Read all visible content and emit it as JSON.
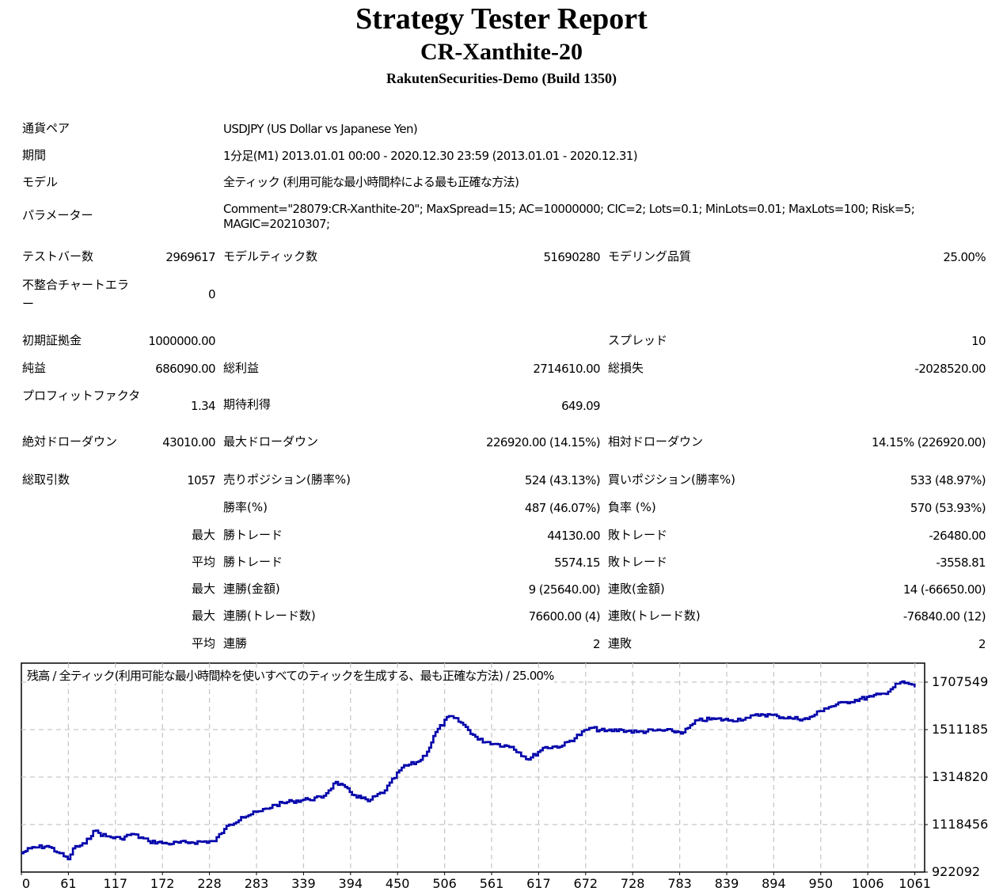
{
  "header": {
    "title": "Strategy Tester Report",
    "expert": "CR-Xanthite-20",
    "server": "RakutenSecurities-Demo (Build 1350)"
  },
  "info": {
    "symbol_label": "通貨ペア",
    "symbol_value": "USDJPY (US Dollar vs Japanese Yen)",
    "period_label": "期間",
    "period_value": "1分足(M1) 2013.01.01 00:00 - 2020.12.30 23:59 (2013.01.01 - 2020.12.31)",
    "model_label": "モデル",
    "model_value": "全ティック (利用可能な最小時間枠による最も正確な方法)",
    "params_label": "パラメーター",
    "params_line1": "Comment=\"28079:CR-Xanthite-20\"; MaxSpread=15; AC=10000000; CIC=2; Lots=0.1; MinLots=0.01; MaxLots=100; Risk=5;",
    "params_line2": "MAGIC=20210307;"
  },
  "stats": {
    "bars_label": "テストバー数",
    "bars_value": "2969617",
    "ticks_label": "モデルティック数",
    "ticks_value": "51690280",
    "quality_label": "モデリング品質",
    "quality_value": "25.00%",
    "mismatch_label": "不整合チャートエラー",
    "mismatch_value": "0",
    "deposit_label": "初期証拠金",
    "deposit_value": "1000000.00",
    "spread_label": "スプレッド",
    "spread_value": "10",
    "net_profit_label": "純益",
    "net_profit_value": "686090.00",
    "gross_profit_label": "総利益",
    "gross_profit_value": "2714610.00",
    "gross_loss_label": "総損失",
    "gross_loss_value": "-2028520.00",
    "profit_factor_label": "プロフィットファクタ",
    "profit_factor_value": "1.34",
    "expected_payoff_label": "期待利得",
    "expected_payoff_value": "649.09",
    "abs_dd_label": "絶対ドローダウン",
    "abs_dd_value": "43010.00",
    "max_dd_label": "最大ドローダウン",
    "max_dd_value": "226920.00 (14.15%)",
    "rel_dd_label": "相対ドローダウン",
    "rel_dd_value": "14.15% (226920.00)",
    "total_trades_label": "総取引数",
    "total_trades_value": "1057",
    "short_label": "売りポジション(勝率%)",
    "short_value": "524 (43.13%)",
    "long_label": "買いポジション(勝率%)",
    "long_value": "533 (48.97%)",
    "win_rate_label": "勝率(%)",
    "win_rate_value": "487 (46.07%)",
    "loss_rate_label": "負率 (%)",
    "loss_rate_value": "570 (53.93%)",
    "largest_prefix": "最大",
    "largest_win_label": "勝トレード",
    "largest_win_value": "44130.00",
    "largest_loss_label": "敗トレード",
    "largest_loss_value": "-26480.00",
    "average_prefix": "平均",
    "avg_win_label": "勝トレード",
    "avg_win_value": "5574.15",
    "avg_loss_label": "敗トレード",
    "avg_loss_value": "-3558.81",
    "max_prefix_1": "最大",
    "max_consec_wins_money_label": "連勝(金額)",
    "max_consec_wins_money_value": "9 (25640.00)",
    "max_consec_losses_money_label": "連敗(金額)",
    "max_consec_losses_money_value": "14 (-66650.00)",
    "max_prefix_2": "最大",
    "max_consec_profit_label": "連勝(トレード数)",
    "max_consec_profit_value": "76600.00 (4)",
    "max_consec_loss_label": "連敗(トレード数)",
    "max_consec_loss_value": "-76840.00 (12)",
    "avg_prefix_2": "平均",
    "avg_consec_wins_label": "連勝",
    "avg_consec_wins_value": "2",
    "avg_consec_losses_label": "連敗",
    "avg_consec_losses_value": "2"
  },
  "chart_data": {
    "type": "line",
    "title": "残高 / 全ティック(利用可能な最小時間枠を使いすべてのティックを生成する、最も正確な方法) / 25.00%",
    "xlabel": "",
    "ylabel": "",
    "x_ticks": [
      "0",
      "61",
      "117",
      "172",
      "228",
      "283",
      "339",
      "394",
      "450",
      "506",
      "561",
      "617",
      "672",
      "728",
      "783",
      "839",
      "894",
      "950",
      "1006",
      "1061"
    ],
    "y_ticks": [
      "1707549",
      "1511185",
      "1314820",
      "1118456",
      "922092"
    ],
    "ylim": [
      922092,
      1707549
    ],
    "xlim": [
      0,
      1067
    ],
    "grid": true,
    "line_color": "#0000AA",
    "series": [
      {
        "name": "残高",
        "x": [
          0,
          10,
          30,
          45,
          55,
          61,
          75,
          85,
          100,
          117,
          130,
          150,
          172,
          200,
          228,
          240,
          260,
          283,
          300,
          320,
          339,
          355,
          372,
          394,
          410,
          430,
          450,
          470,
          480,
          490,
          506,
          520,
          540,
          561,
          580,
          600,
          617,
          640,
          672,
          690,
          710,
          728,
          750,
          770,
          783,
          800,
          820,
          839,
          860,
          875,
          894,
          910,
          930,
          950,
          975,
          1006,
          1020,
          1040,
          1050,
          1057
        ],
        "values": [
          1000000,
          1020000,
          1030000,
          1000000,
          975000,
          1020000,
          1040000,
          1092000,
          1070000,
          1060000,
          1080000,
          1050000,
          1040000,
          1045000,
          1050000,
          1100000,
          1150000,
          1174000,
          1200000,
          1215000,
          1223000,
          1230000,
          1295000,
          1240000,
          1215000,
          1260000,
          1354000,
          1380000,
          1420000,
          1501000,
          1567000,
          1540000,
          1470000,
          1452000,
          1440000,
          1387000,
          1436000,
          1445000,
          1518000,
          1505000,
          1510000,
          1501000,
          1508000,
          1505000,
          1500000,
          1550000,
          1555000,
          1550000,
          1560000,
          1575000,
          1567000,
          1558000,
          1555000,
          1599000,
          1625000,
          1648000,
          1660000,
          1707000,
          1700000,
          1686090
        ]
      }
    ]
  }
}
